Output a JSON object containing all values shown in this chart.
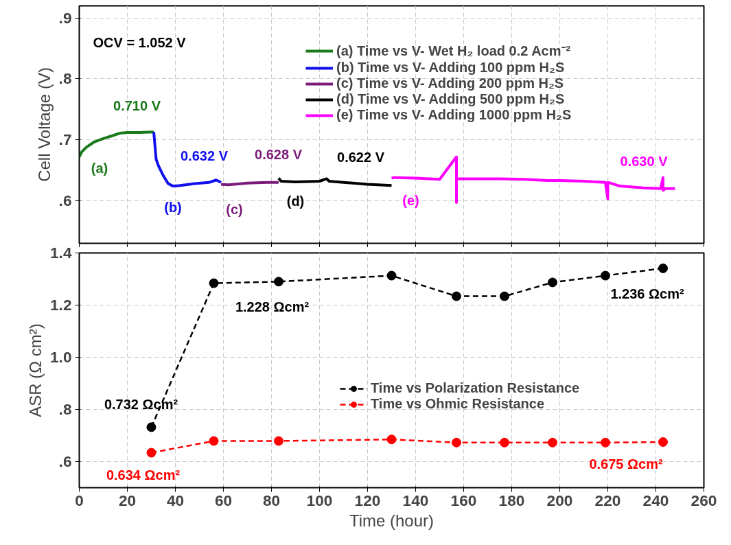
{
  "chart_data": [
    {
      "type": "line",
      "ylabel": "Cell Voltage (V)",
      "xlim": [
        0,
        260
      ],
      "xticks": [
        0,
        20,
        40,
        60,
        80,
        100,
        120,
        140,
        160,
        180,
        200,
        220,
        240,
        260
      ],
      "ylim": [
        0.53,
        0.92
      ],
      "yticks": [
        {
          "value": 0.6,
          "label": ".6"
        },
        {
          "value": 0.7,
          "label": ".7"
        },
        {
          "value": 0.8,
          "label": ".8"
        },
        {
          "value": 0.9,
          "label": ".9"
        }
      ],
      "tick_labels": "y",
      "grid": true,
      "legend": "top",
      "marker": "none",
      "line_style": "solid",
      "series": [
        {
          "name": "(a) Time vs V- Wet H₂ load 0.2 Acm⁻²",
          "color": "#1a7a1a",
          "x": [
            0,
            1,
            3,
            6,
            10,
            14,
            17,
            20,
            25,
            31
          ],
          "values": [
            0.672,
            0.68,
            0.688,
            0.696,
            0.702,
            0.707,
            0.711,
            0.712,
            0.712,
            0.713
          ]
        },
        {
          "name": "(b) Time vs V- Adding 100 ppm H₂S",
          "color": "#1010ee",
          "x": [
            31,
            32,
            33,
            35,
            37,
            39,
            42,
            48,
            54,
            57,
            59
          ],
          "values": [
            0.713,
            0.668,
            0.657,
            0.641,
            0.628,
            0.624,
            0.625,
            0.628,
            0.63,
            0.634,
            0.63
          ]
        },
        {
          "name": "(c) Time vs V- Adding 200 ppm H₂S",
          "color": "#7a1a7a",
          "x": [
            59,
            62,
            70,
            78,
            83
          ],
          "values": [
            0.627,
            0.626,
            0.629,
            0.63,
            0.63
          ]
        },
        {
          "name": "(d) Time vs V- Adding 500 ppm H₂S",
          "color": "#000000",
          "x": [
            83,
            84,
            90,
            100,
            103,
            104,
            110,
            120,
            130
          ],
          "values": [
            0.637,
            0.632,
            0.631,
            0.632,
            0.636,
            0.632,
            0.63,
            0.627,
            0.625
          ]
        },
        {
          "name": "(e) Time vs V- Adding 1000 ppm H₂S",
          "color": "#ff00ff",
          "x": [
            130,
            131,
            140,
            150,
            157,
            157,
            157,
            158,
            165,
            175,
            185,
            195,
            200,
            210,
            219,
            220,
            220,
            221,
            225,
            235,
            242,
            243,
            243,
            244,
            248
          ],
          "values": [
            0.637,
            0.638,
            0.637,
            0.635,
            0.672,
            0.597,
            0.636,
            0.636,
            0.636,
            0.636,
            0.635,
            0.633,
            0.633,
            0.632,
            0.63,
            0.603,
            0.63,
            0.629,
            0.624,
            0.621,
            0.62,
            0.638,
            0.617,
            0.62,
            0.62
          ]
        }
      ],
      "annotations": [
        "OCV = 1.052 V",
        {
          "text": "0.710 V",
          "x": 20,
          "y": 0.712
        },
        {
          "text": "(a)",
          "x": 1,
          "y": 0.68
        },
        {
          "text": "0.632 V",
          "x": 48,
          "y": 0.628
        },
        {
          "text": "(b)",
          "x": 39,
          "y": 0.624
        },
        {
          "text": "0.628 V",
          "x": 78,
          "y": 0.63
        },
        {
          "text": "(c)",
          "x": 62,
          "y": 0.626
        },
        {
          "text": "0.622 V",
          "x": 120,
          "y": 0.627
        },
        {
          "text": "(d)",
          "x": 90,
          "y": 0.631
        },
        {
          "text": "(e)",
          "x": 140,
          "y": 0.637
        },
        {
          "text": "0.630 V",
          "x": 235,
          "y": 0.621
        }
      ]
    },
    {
      "type": "line",
      "xlabel": "Time (hour)",
      "ylabel": "ASR (Ω cm²)",
      "xlim": [
        0,
        260
      ],
      "xticks": [
        0,
        20,
        40,
        60,
        80,
        100,
        120,
        140,
        160,
        180,
        200,
        220,
        240,
        260
      ],
      "ylim": [
        0.5,
        1.4
      ],
      "yticks": [
        {
          "value": 0.6,
          "label": ".6"
        },
        {
          "value": 0.8,
          "label": ".8"
        },
        {
          "value": 1.0,
          "label": "1.0"
        },
        {
          "value": 1.2,
          "label": "1.2"
        },
        {
          "value": 1.4,
          "label": "1.4"
        }
      ],
      "grid": true,
      "legend": "right",
      "marker": "circle",
      "line_style": "dashed",
      "x": [
        30,
        56,
        83,
        130,
        157,
        177,
        197,
        219,
        243
      ],
      "series": [
        {
          "name": "Time vs Polarization Resistance",
          "color": "#000000",
          "values": [
            0.732,
            1.284,
            1.29,
            1.313,
            1.234,
            1.234,
            1.287,
            1.313,
            1.341
          ]
        },
        {
          "name": "Time vs Ohmic Resistance",
          "color": "#ff0000",
          "values": [
            0.634,
            0.679,
            0.679,
            0.685,
            0.673,
            0.673,
            0.673,
            0.673,
            0.675
          ]
        }
      ],
      "annotations": [
        {
          "text": "0.732 Ωcm²",
          "x": 30,
          "y": 0.732
        },
        {
          "text": "1.228 Ωcm²",
          "x": 56,
          "y": 1.284
        },
        {
          "text": "1.236 Ωcm²",
          "x": 243,
          "y": 1.341
        },
        {
          "text": "0.634 Ωcm²",
          "x": 30,
          "y": 0.634
        },
        {
          "text": "0.675 Ωcm²",
          "x": 243,
          "y": 0.675
        }
      ]
    }
  ]
}
